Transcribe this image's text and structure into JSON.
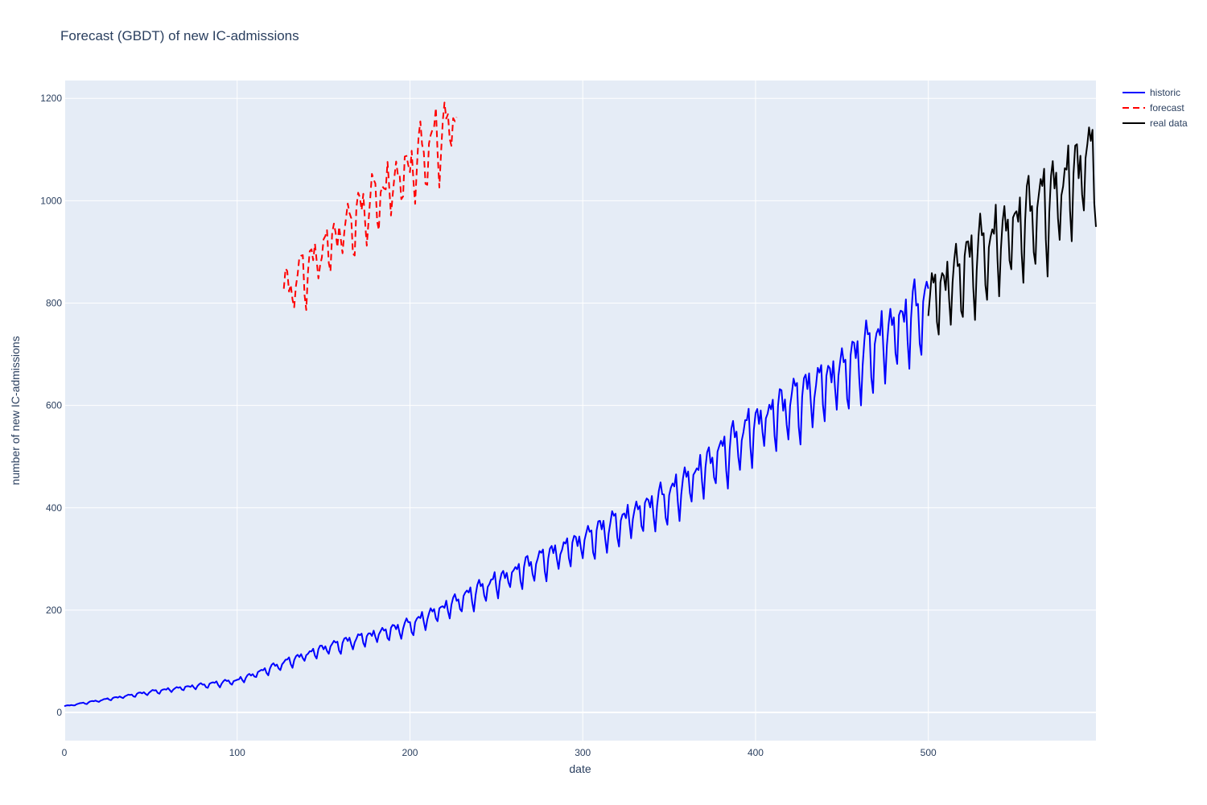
{
  "chart_data": {
    "type": "line",
    "title": "Forecast (GBDT) of new IC-admissions",
    "xlabel": "date",
    "ylabel": "number of new IC-admissions",
    "xlim": [
      0,
      597
    ],
    "ylim": [
      -55,
      1235
    ],
    "x_ticks": [
      0,
      100,
      200,
      300,
      400,
      500
    ],
    "y_ticks": [
      0,
      200,
      400,
      600,
      800,
      1000,
      1200
    ],
    "grid": true,
    "legend_position": "top-right",
    "plot_background": "#e5ecf6",
    "series": [
      {
        "name": "historic",
        "color": "#0000ff",
        "dash": "solid",
        "x_start": 0,
        "x_step": 1,
        "weekly_pattern": [
          0,
          0.04,
          0.06,
          0.02,
          0.05,
          -0.06,
          -0.12
        ],
        "trend": [
          [
            0,
            12
          ],
          [
            50,
            40
          ],
          [
            100,
            62
          ],
          [
            150,
            125
          ],
          [
            200,
            170
          ],
          [
            250,
            255
          ],
          [
            300,
            335
          ],
          [
            350,
            420
          ],
          [
            400,
            560
          ],
          [
            450,
            665
          ],
          [
            500,
            800
          ]
        ]
      },
      {
        "name": "forecast",
        "color": "#ff0000",
        "dash": "dashed",
        "x_start": 127,
        "x_step": 1,
        "weekly_pattern": [
          0,
          0.025,
          0.035,
          0.015,
          0.03,
          -0.03,
          -0.06
        ],
        "trend": [
          [
            127,
            815
          ],
          [
            150,
            900
          ],
          [
            175,
            985
          ],
          [
            200,
            1060
          ],
          [
            227,
            1160
          ]
        ]
      },
      {
        "name": "real data",
        "color": "#000000",
        "dash": "solid",
        "x_start": 500,
        "x_step": 1,
        "weekly_pattern": [
          0,
          0.04,
          0.06,
          0.02,
          0.05,
          -0.06,
          -0.11
        ],
        "trend": [
          [
            500,
            800
          ],
          [
            525,
            880
          ],
          [
            550,
            945
          ],
          [
            575,
            1010
          ],
          [
            597,
            1095
          ]
        ]
      }
    ]
  }
}
